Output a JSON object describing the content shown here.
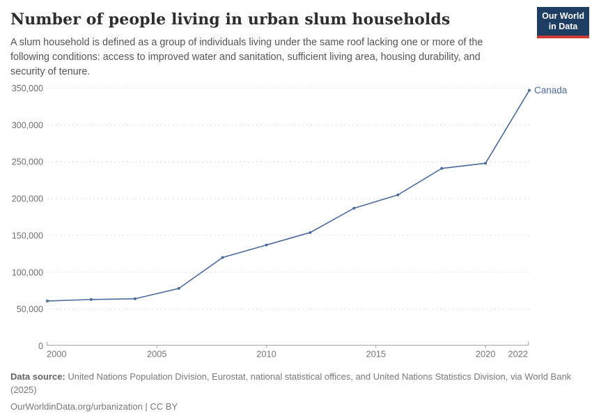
{
  "header": {
    "title": "Number of people living in urban slum households",
    "subtitle": "A slum household is defined as a group of individuals living under the same roof lacking one or more of the following conditions: access to improved water and sanitation, sufficient living area, housing durability, and security of tenure.",
    "logo": {
      "line1": "Our World",
      "line2": "in Data",
      "bg_color": "#1d3d63",
      "bar_color": "#cf3b34"
    }
  },
  "chart_data": {
    "type": "line",
    "title": "Number of people living in urban slum households",
    "x": [
      2000,
      2002,
      2004,
      2006,
      2008,
      2010,
      2012,
      2014,
      2016,
      2018,
      2020,
      2022
    ],
    "series": [
      {
        "name": "Canada",
        "color": "#4c6a9c",
        "values": [
          61000,
          63000,
          64000,
          78000,
          120000,
          137000,
          154000,
          187000,
          205000,
          241000,
          248000,
          347000
        ]
      }
    ],
    "xlabel": "",
    "ylabel": "",
    "xlim": [
      2000,
      2022
    ],
    "ylim": [
      0,
      350000
    ],
    "yticks": [
      {
        "v": 0,
        "label": "0"
      },
      {
        "v": 50000,
        "label": "50,000"
      },
      {
        "v": 100000,
        "label": "100,000"
      },
      {
        "v": 150000,
        "label": "150,000"
      },
      {
        "v": 200000,
        "label": "200,000"
      },
      {
        "v": 250000,
        "label": "250,000"
      },
      {
        "v": 300000,
        "label": "300,000"
      },
      {
        "v": 350000,
        "label": "350,000"
      }
    ],
    "xticks": [
      {
        "v": 2000,
        "label": "2000"
      },
      {
        "v": 2005,
        "label": "2005"
      },
      {
        "v": 2010,
        "label": "2010"
      },
      {
        "v": 2015,
        "label": "2015"
      },
      {
        "v": 2020,
        "label": "2020"
      },
      {
        "v": 2022,
        "label": "2022"
      }
    ],
    "grid": "horizontal-dashed",
    "legend": "end-of-line-label"
  },
  "footer": {
    "datasource_label": "Data source:",
    "datasource_text": " United Nations Population Division, Eurostat, national statistical offices, and United Nations Statistics Division, via World Bank (2025)",
    "url_line": "OurWorldinData.org/urbanization | CC BY"
  }
}
